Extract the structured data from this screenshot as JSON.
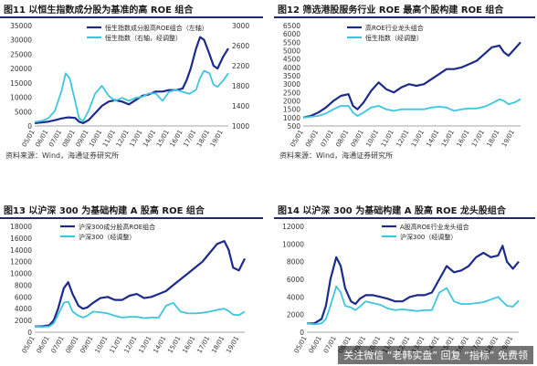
{
  "colors": {
    "dark": "#1c2a8c",
    "light": "#3ec6df",
    "title_bar": "#1f2a6b"
  },
  "source_text": "资料来源：Wind，海通证券研究所",
  "watermark": "关注微信 “老韩实盘” 回复 “指标” 免费领",
  "chart_data": [
    {
      "type": "line",
      "title": "图11 以恒生指数成分股为基准的高 ROE 组合",
      "x_ticks": [
        "05/01",
        "06/01",
        "07/01",
        "08/01",
        "09/01",
        "10/01",
        "11/01",
        "12/01",
        "13/01",
        "14/01",
        "15/01",
        "16/01",
        "17/01",
        "18/01",
        "19/01"
      ],
      "ylim_left": [
        0,
        35000
      ],
      "yticks_left": [
        "0",
        "5000",
        "10000",
        "15000",
        "20000",
        "25000",
        "30000",
        "35000"
      ],
      "ylim_right": [
        1000,
        3000
      ],
      "yticks_right": [
        "1000",
        "1400",
        "1800",
        "2200",
        "2600",
        "3000"
      ],
      "series": [
        {
          "name": "恒生指数成分股高ROE组合（左轴）",
          "axis": "left",
          "color": "dark",
          "x": [
            0,
            0.5,
            1,
            1.5,
            2,
            2.5,
            3,
            3.3,
            3.6,
            4,
            4.5,
            5,
            5.5,
            6,
            6.5,
            7,
            7.5,
            8,
            8.5,
            9,
            9.5,
            10,
            10.5,
            11,
            11.3,
            11.6,
            12,
            12.3,
            12.6,
            13,
            13.3,
            13.6,
            14,
            14.4
          ],
          "values": [
            1000,
            1200,
            1500,
            2000,
            2600,
            3000,
            2800,
            1500,
            1000,
            2000,
            4500,
            7000,
            8500,
            9000,
            8500,
            7500,
            9000,
            10500,
            11000,
            12000,
            12000,
            12500,
            12500,
            13000,
            16000,
            20000,
            27000,
            31000,
            30000,
            25000,
            21000,
            20000,
            24000,
            27000
          ]
        },
        {
          "name": "恒生指数（右轴，经调整）",
          "axis": "right",
          "color": "light",
          "x": [
            0,
            0.5,
            1,
            1.5,
            2,
            2.3,
            2.6,
            3,
            3.3,
            3.6,
            4,
            4.5,
            5,
            5.5,
            6,
            6.5,
            7,
            7.5,
            8,
            8.5,
            9,
            9.5,
            10,
            10.5,
            11,
            11.5,
            12,
            12.3,
            12.6,
            13,
            13.3,
            13.6,
            14,
            14.4
          ],
          "values": [
            1080,
            1100,
            1150,
            1300,
            1700,
            2050,
            1950,
            1500,
            1150,
            1100,
            1300,
            1650,
            1800,
            1600,
            1500,
            1560,
            1500,
            1560,
            1580,
            1650,
            1650,
            1500,
            1680,
            1720,
            1680,
            1640,
            1720,
            1960,
            2100,
            2050,
            1820,
            1780,
            1900,
            2050
          ]
        }
      ]
    },
    {
      "type": "line",
      "title": "图12 筛选港股服务行业 ROE 最高个股构建 ROE 组合",
      "x_ticks": [
        "05/01",
        "06/01",
        "07/01",
        "08/01",
        "09/01",
        "10/01",
        "11/01",
        "12/01",
        "13/01",
        "14/01",
        "15/01",
        "16/01",
        "17/01",
        "18/01",
        "19/01"
      ],
      "ylim_left": [
        500,
        6500
      ],
      "yticks_left": [
        "500",
        "1000",
        "1500",
        "2000",
        "2500",
        "3000",
        "3500",
        "4000",
        "4500",
        "5000",
        "5500",
        "6000",
        "6500"
      ],
      "series": [
        {
          "name": "高ROE行业龙头组合",
          "axis": "left",
          "color": "dark",
          "x": [
            0,
            0.5,
            1,
            1.5,
            2,
            2.5,
            3,
            3.3,
            3.6,
            4,
            4.5,
            5,
            5.5,
            6,
            6.5,
            7,
            7.5,
            8,
            8.5,
            9,
            9.5,
            10,
            10.5,
            11,
            11.5,
            12,
            12.5,
            13,
            13.3,
            13.6,
            14,
            14.4
          ],
          "values": [
            1000,
            1100,
            1300,
            1600,
            2000,
            2300,
            2400,
            1700,
            1500,
            1900,
            2600,
            3100,
            2700,
            2500,
            2800,
            3000,
            2900,
            3000,
            3300,
            3600,
            3900,
            3900,
            4000,
            4200,
            4400,
            4800,
            5200,
            5300,
            4900,
            4700,
            5100,
            5500
          ]
        },
        {
          "name": "恒生指数（经调整）",
          "axis": "left",
          "color": "light",
          "x": [
            0,
            0.5,
            1,
            1.5,
            2,
            2.5,
            3,
            3.3,
            3.6,
            4,
            4.5,
            5,
            5.5,
            6,
            6.5,
            7,
            7.5,
            8,
            8.5,
            9,
            9.5,
            10,
            10.5,
            11,
            11.5,
            12,
            12.5,
            13,
            13.3,
            13.6,
            14,
            14.4
          ],
          "values": [
            1000,
            1050,
            1100,
            1250,
            1500,
            1700,
            1700,
            1300,
            1100,
            1300,
            1600,
            1700,
            1500,
            1400,
            1500,
            1500,
            1500,
            1500,
            1600,
            1650,
            1600,
            1400,
            1500,
            1550,
            1550,
            1650,
            1850,
            2100,
            2000,
            1800,
            1900,
            2100
          ]
        }
      ]
    },
    {
      "type": "line",
      "title": "图13 以沪深 300 为基础构建 A 股高 ROE 组合",
      "x_ticks": [
        "05/01",
        "06/01",
        "07/01",
        "08/01",
        "09/01",
        "10/01",
        "11/01",
        "12/01",
        "13/01",
        "14/01",
        "15/01",
        "16/01",
        "17/01",
        "18/01",
        "19/01"
      ],
      "ylim_left": [
        0,
        18000
      ],
      "yticks_left": [
        "0",
        "2000",
        "4000",
        "6000",
        "8000",
        "10000",
        "12000",
        "14000",
        "16000",
        "18000"
      ],
      "series": [
        {
          "name": "沪深300成分股高ROE组合",
          "axis": "left",
          "color": "dark",
          "x": [
            0,
            0.5,
            1,
            1.3,
            1.6,
            2,
            2.3,
            2.6,
            3,
            3.3,
            3.6,
            4,
            4.5,
            5,
            5.5,
            6,
            6.5,
            7,
            7.5,
            8,
            8.5,
            9,
            9.5,
            10,
            10.5,
            11,
            11.5,
            12,
            12.5,
            13,
            13.3,
            13.6,
            14,
            14.4
          ],
          "values": [
            1000,
            1000,
            1200,
            2000,
            4000,
            7500,
            8500,
            6500,
            4500,
            4000,
            4200,
            5000,
            5800,
            6000,
            5500,
            5500,
            6200,
            6500,
            5800,
            6000,
            6500,
            7000,
            8000,
            9000,
            10000,
            11000,
            12000,
            13500,
            15000,
            15500,
            14000,
            11000,
            10500,
            12500
          ]
        },
        {
          "name": "沪深300（经调整）",
          "axis": "left",
          "color": "light",
          "x": [
            0,
            0.5,
            1,
            1.3,
            1.6,
            2,
            2.3,
            2.6,
            3,
            3.3,
            3.6,
            4,
            4.5,
            5,
            5.5,
            6,
            6.5,
            7,
            7.5,
            8,
            8.5,
            9,
            9.5,
            10,
            10.5,
            11,
            11.5,
            12,
            12.5,
            13,
            13.3,
            13.6,
            14,
            14.4
          ],
          "values": [
            1000,
            900,
            1000,
            1500,
            3000,
            5000,
            5200,
            3500,
            2800,
            2500,
            2800,
            3500,
            3400,
            3200,
            2800,
            2500,
            2600,
            2600,
            2400,
            2500,
            2500,
            4500,
            5000,
            3500,
            3200,
            3200,
            3300,
            3500,
            3800,
            4000,
            3600,
            3000,
            2900,
            3500
          ]
        }
      ]
    },
    {
      "type": "line",
      "title": "图14 以沪深 300 为基础构建 A 股高 ROE 龙头股组合",
      "x_ticks": [
        "05/01",
        "06/01",
        "07/01",
        "08/01",
        "09/01",
        "10/01",
        "11/01",
        "12/01",
        "13/01",
        "14/01",
        "15/01",
        "16/01",
        "17/01",
        "18/01",
        "19/01"
      ],
      "ylim_left": [
        0,
        12000
      ],
      "yticks_left": [
        "0",
        "2000",
        "4000",
        "6000",
        "8000",
        "10000",
        "12000"
      ],
      "series": [
        {
          "name": "A股高ROE行业龙头组合",
          "axis": "left",
          "color": "dark",
          "x": [
            0,
            0.5,
            1,
            1.3,
            1.6,
            2,
            2.3,
            2.6,
            3,
            3.3,
            3.6,
            4,
            4.5,
            5,
            5.5,
            6,
            6.5,
            7,
            7.5,
            8,
            8.5,
            9,
            9.5,
            10,
            10.5,
            11,
            11.5,
            12,
            12.5,
            13,
            13.3,
            13.6,
            14,
            14.4
          ],
          "values": [
            1000,
            1000,
            1500,
            3000,
            6000,
            8500,
            7500,
            5000,
            3500,
            3200,
            3800,
            4200,
            4200,
            4000,
            3800,
            3500,
            3500,
            4000,
            4200,
            4200,
            4500,
            6000,
            7500,
            6800,
            7000,
            7500,
            8500,
            9000,
            8500,
            8700,
            9800,
            8000,
            7200,
            8000
          ]
        },
        {
          "name": "沪深300（经调整）",
          "axis": "left",
          "color": "light",
          "x": [
            0,
            0.5,
            1,
            1.3,
            1.6,
            2,
            2.3,
            2.6,
            3,
            3.3,
            3.6,
            4,
            4.5,
            5,
            5.5,
            6,
            6.5,
            7,
            7.5,
            8,
            8.5,
            9,
            9.5,
            10,
            10.5,
            11,
            11.5,
            12,
            12.5,
            13,
            13.3,
            13.6,
            14,
            14.4
          ],
          "values": [
            1000,
            900,
            1000,
            1500,
            3000,
            5200,
            4500,
            3000,
            2800,
            2500,
            2900,
            3500,
            3300,
            3100,
            2700,
            2500,
            2600,
            2500,
            2400,
            2500,
            2500,
            4500,
            5000,
            3500,
            3200,
            3200,
            3300,
            3400,
            3700,
            4000,
            3500,
            3000,
            2900,
            3600
          ]
        }
      ]
    }
  ]
}
